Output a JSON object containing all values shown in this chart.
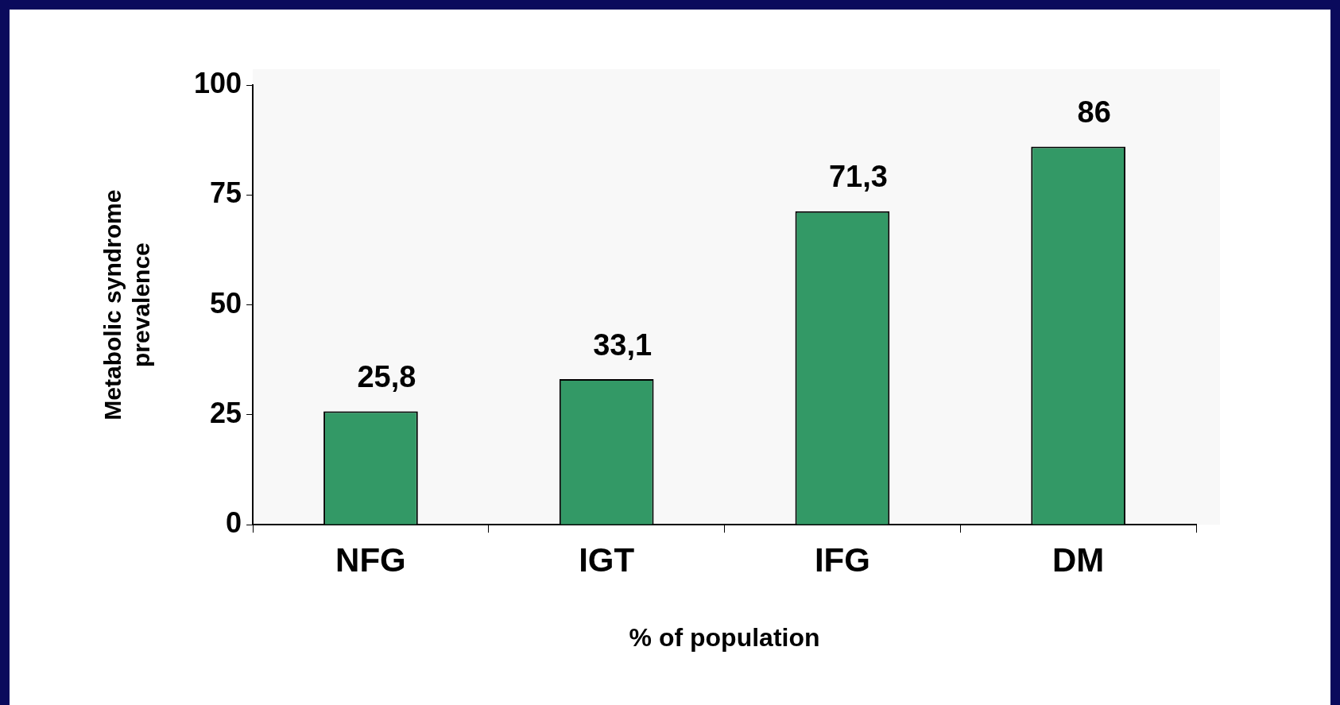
{
  "chart_data": {
    "type": "bar",
    "xlabel": "% of population",
    "ylabel": "Metabolic syndrome\nprevalence",
    "categories": [
      "NFG",
      "IGT",
      "IFG",
      "DM"
    ],
    "values": [
      25.8,
      33.1,
      71.3,
      86
    ],
    "value_labels": [
      "25,8",
      "33,1",
      "71,3",
      "86"
    ],
    "color": "#339966",
    "ylim": [
      0,
      100
    ],
    "yticks": [
      0,
      25,
      50,
      75,
      100
    ],
    "grid": false,
    "legend": false
  }
}
